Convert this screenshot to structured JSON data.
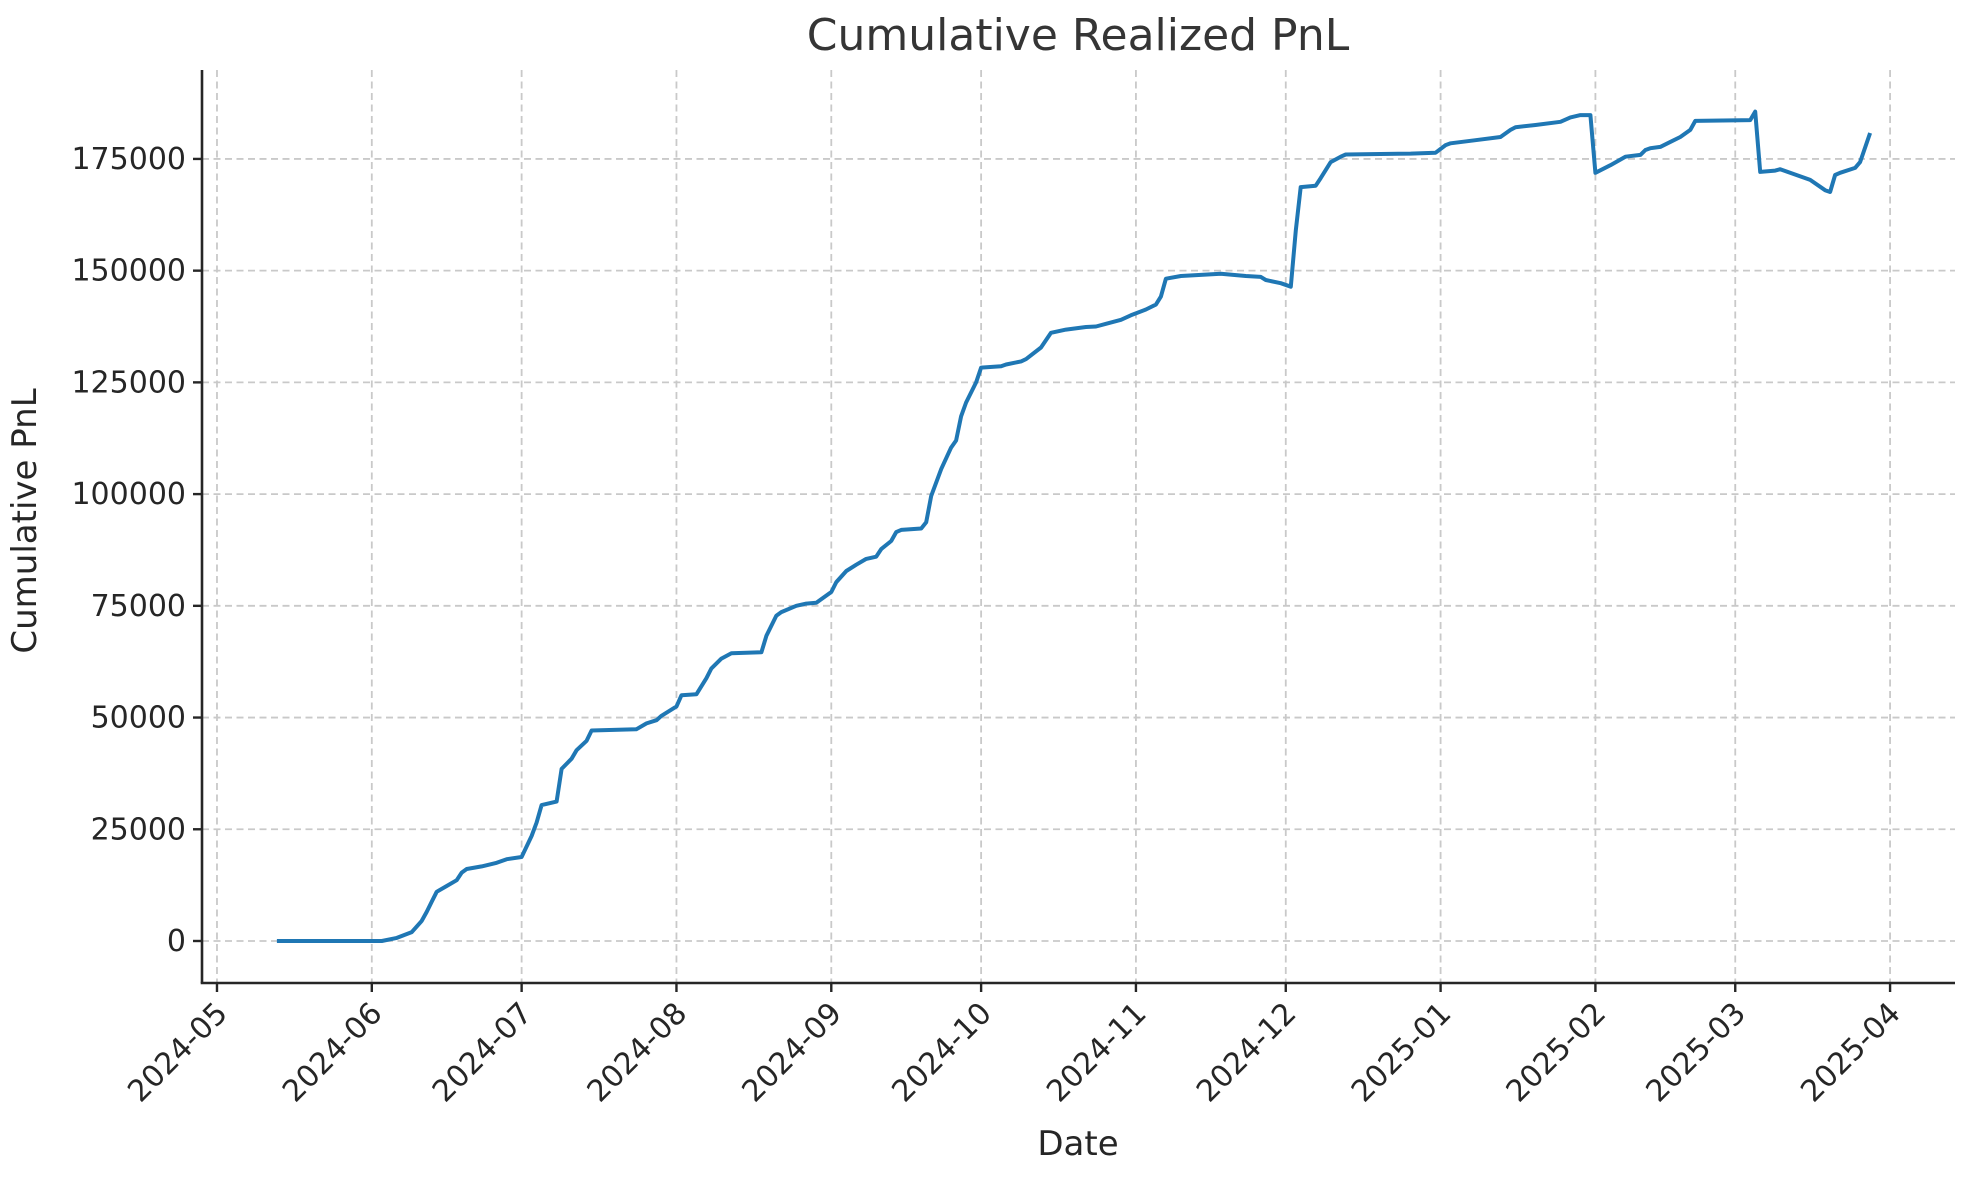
{
  "figure": {
    "background": "#ffffff"
  },
  "chart_data": {
    "type": "line",
    "title": "Cumulative Realized PnL",
    "xlabel": "Date",
    "ylabel": "Cumulative PnL",
    "grid": true,
    "grid_color": "#c9c9c9",
    "grid_style": "dashed",
    "axis_color": "#262626",
    "line_color": "#1f77b4",
    "legend_position": "none",
    "xlim": [
      "2024-04-28",
      "2025-04-14"
    ],
    "ylim": [
      -9400,
      194900
    ],
    "xticks": [
      {
        "date": "2024-05-01",
        "label": "2024-05"
      },
      {
        "date": "2024-06-01",
        "label": "2024-06"
      },
      {
        "date": "2024-07-01",
        "label": "2024-07"
      },
      {
        "date": "2024-08-01",
        "label": "2024-08"
      },
      {
        "date": "2024-09-01",
        "label": "2024-09"
      },
      {
        "date": "2024-10-01",
        "label": "2024-10"
      },
      {
        "date": "2024-11-01",
        "label": "2024-11"
      },
      {
        "date": "2024-12-01",
        "label": "2024-12"
      },
      {
        "date": "2025-01-01",
        "label": "2025-01"
      },
      {
        "date": "2025-02-01",
        "label": "2025-02"
      },
      {
        "date": "2025-03-01",
        "label": "2025-03"
      },
      {
        "date": "2025-04-01",
        "label": "2025-04"
      }
    ],
    "yticks": [
      {
        "value": 0,
        "label": "0"
      },
      {
        "value": 25000,
        "label": "25000"
      },
      {
        "value": 50000,
        "label": "50000"
      },
      {
        "value": 75000,
        "label": "75000"
      },
      {
        "value": 100000,
        "label": "100000"
      },
      {
        "value": 125000,
        "label": "125000"
      },
      {
        "value": 150000,
        "label": "150000"
      },
      {
        "value": 175000,
        "label": "175000"
      }
    ],
    "series": [
      {
        "name": "Cumulative Realized PnL",
        "color": "#1f77b4",
        "x": [
          "2024-05-13",
          "2024-06-03",
          "2024-06-06",
          "2024-06-09",
          "2024-06-11",
          "2024-06-12",
          "2024-06-13",
          "2024-06-14",
          "2024-06-16",
          "2024-06-18",
          "2024-06-19",
          "2024-06-20",
          "2024-06-23",
          "2024-06-26",
          "2024-06-28",
          "2024-07-01",
          "2024-07-03",
          "2024-07-04",
          "2024-07-05",
          "2024-07-08",
          "2024-07-09",
          "2024-07-11",
          "2024-07-12",
          "2024-07-14",
          "2024-07-15",
          "2024-07-24",
          "2024-07-26",
          "2024-07-28",
          "2024-07-29",
          "2024-08-01",
          "2024-08-02",
          "2024-08-05",
          "2024-08-07",
          "2024-08-08",
          "2024-08-10",
          "2024-08-12",
          "2024-08-18",
          "2024-08-19",
          "2024-08-21",
          "2024-08-22",
          "2024-08-25",
          "2024-08-27",
          "2024-08-29",
          "2024-09-01",
          "2024-09-02",
          "2024-09-04",
          "2024-09-06",
          "2024-09-08",
          "2024-09-10",
          "2024-09-11",
          "2024-09-13",
          "2024-09-14",
          "2024-09-15",
          "2024-09-19",
          "2024-09-20",
          "2024-09-21",
          "2024-09-23",
          "2024-09-25",
          "2024-09-26",
          "2024-09-27",
          "2024-09-28",
          "2024-09-30",
          "2024-10-01",
          "2024-10-05",
          "2024-10-06",
          "2024-10-09",
          "2024-10-10",
          "2024-10-13",
          "2024-10-15",
          "2024-10-18",
          "2024-10-22",
          "2024-10-24",
          "2024-10-26",
          "2024-10-29",
          "2024-10-31",
          "2024-11-03",
          "2024-11-05",
          "2024-11-06",
          "2024-11-07",
          "2024-11-10",
          "2024-11-18",
          "2024-11-23",
          "2024-11-26",
          "2024-11-27",
          "2024-11-30",
          "2024-12-02",
          "2024-12-03",
          "2024-12-04",
          "2024-12-07",
          "2024-12-08",
          "2024-12-10",
          "2024-12-12",
          "2024-12-13",
          "2024-12-26",
          "2024-12-31",
          "2025-01-02",
          "2025-01-03",
          "2025-01-08",
          "2025-01-13",
          "2025-01-15",
          "2025-01-16",
          "2025-01-20",
          "2025-01-25",
          "2025-01-27",
          "2025-01-29",
          "2025-01-31",
          "2025-02-01",
          "2025-02-04",
          "2025-02-07",
          "2025-02-10",
          "2025-02-11",
          "2025-02-12",
          "2025-02-14",
          "2025-02-16",
          "2025-02-18",
          "2025-02-20",
          "2025-02-21",
          "2025-03-04",
          "2025-03-05",
          "2025-03-06",
          "2025-03-09",
          "2025-03-10",
          "2025-03-16",
          "2025-03-19",
          "2025-03-20",
          "2025-03-21",
          "2025-03-22",
          "2025-03-25",
          "2025-03-26",
          "2025-03-28"
        ],
        "y": [
          0,
          0,
          700,
          2000,
          4500,
          6500,
          8800,
          11000,
          12300,
          13600,
          15300,
          16100,
          16700,
          17500,
          18300,
          18800,
          23500,
          26500,
          30400,
          31200,
          38500,
          40800,
          42700,
          44800,
          47100,
          47400,
          48700,
          49400,
          50400,
          52500,
          55000,
          55200,
          58800,
          61000,
          63200,
          64400,
          64600,
          68300,
          72800,
          73600,
          75000,
          75500,
          75700,
          78100,
          80300,
          82800,
          84200,
          85500,
          86000,
          87700,
          89500,
          91500,
          92000,
          92300,
          93700,
          99600,
          105600,
          110400,
          112000,
          117400,
          120500,
          125000,
          128300,
          128600,
          129000,
          129700,
          130200,
          132800,
          136100,
          136800,
          137400,
          137500,
          138100,
          139000,
          140000,
          141300,
          142400,
          144200,
          148200,
          148800,
          149300,
          148800,
          148600,
          147900,
          147200,
          146400,
          159000,
          168700,
          169000,
          170700,
          174300,
          175500,
          176000,
          176200,
          176400,
          178100,
          178500,
          179200,
          179900,
          181500,
          182100,
          182600,
          183300,
          184300,
          184800,
          184800,
          171900,
          173600,
          175500,
          175900,
          177000,
          177400,
          177700,
          178800,
          179900,
          181500,
          183500,
          183700,
          185600,
          172100,
          172400,
          172700,
          170300,
          168000,
          167600,
          171400,
          171900,
          173000,
          174300,
          180800
        ]
      }
    ]
  }
}
